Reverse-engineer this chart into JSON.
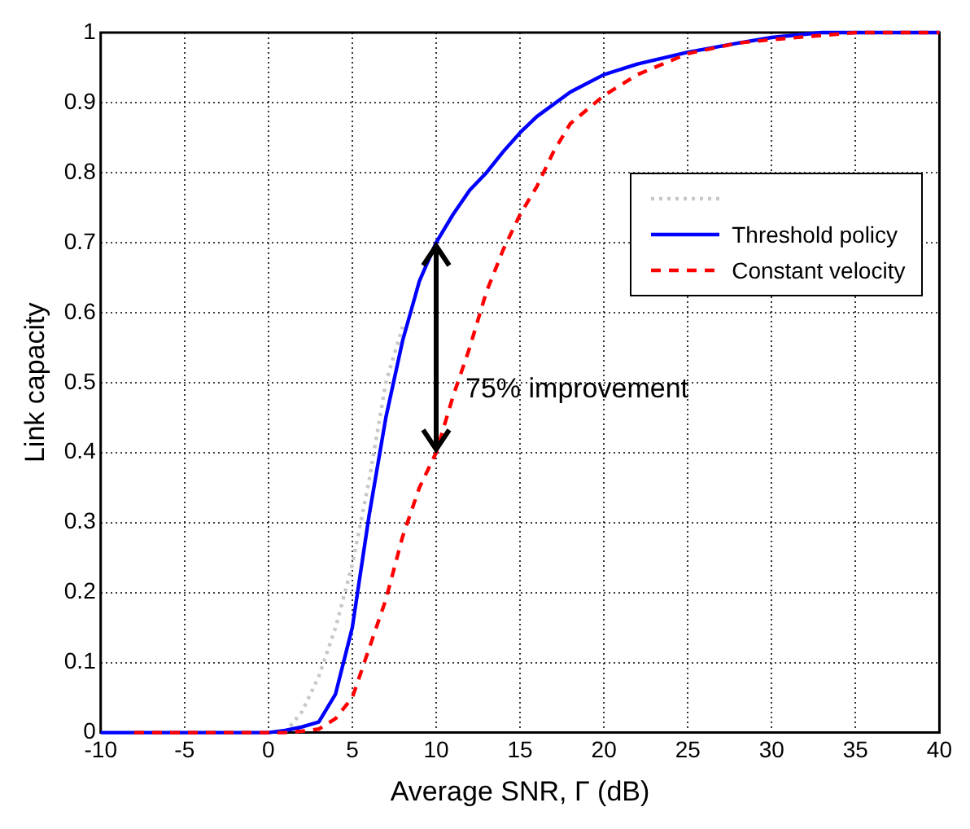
{
  "chart_data": {
    "type": "line",
    "xlabel": "Average SNR, Γ (dB)",
    "ylabel": "Link capacity",
    "xlim": [
      -10,
      40
    ],
    "xticks": [
      -10,
      -5,
      0,
      5,
      10,
      15,
      20,
      25,
      30,
      35,
      40
    ],
    "ylim": [
      0,
      1
    ],
    "yticks": [
      0,
      0.1,
      0.2,
      0.3,
      0.4,
      0.5,
      0.6,
      0.7,
      0.8,
      0.9,
      1
    ],
    "grid": true,
    "legend": "right",
    "marker": "none",
    "annotations": [
      "75% improvement"
    ],
    "series": [
      {
        "color": "#c8c8c8",
        "line_style": "dotted",
        "x": [
          1,
          2,
          3,
          4,
          5,
          6,
          7,
          8
        ],
        "values": [
          0,
          0.03,
          0.08,
          0.15,
          0.24,
          0.36,
          0.5,
          0.58
        ]
      },
      {
        "name": "Threshold policy",
        "color": "#0000ff",
        "line_style": "solid",
        "x": [
          -10,
          0,
          1,
          2,
          3,
          4,
          5,
          6,
          7,
          8,
          9,
          10,
          11,
          12,
          13,
          14,
          15,
          16,
          18,
          20,
          22,
          25,
          28,
          30,
          33,
          40
        ],
        "values": [
          0,
          0,
          0.003,
          0.008,
          0.015,
          0.055,
          0.15,
          0.31,
          0.45,
          0.56,
          0.645,
          0.7,
          0.74,
          0.775,
          0.8,
          0.83,
          0.857,
          0.88,
          0.915,
          0.94,
          0.955,
          0.972,
          0.985,
          0.993,
          1,
          1
        ]
      },
      {
        "name": "Constant velocity",
        "color": "#ff0000",
        "line_style": "dashed",
        "x": [
          -8,
          1,
          2,
          3,
          4,
          5,
          6,
          7,
          8,
          9,
          10,
          11,
          12,
          13,
          14,
          15,
          16,
          17,
          18,
          20,
          22,
          25,
          28,
          30,
          35,
          40
        ],
        "values": [
          0,
          0,
          0.002,
          0.005,
          0.02,
          0.05,
          0.12,
          0.19,
          0.28,
          0.35,
          0.4,
          0.48,
          0.55,
          0.63,
          0.69,
          0.74,
          0.78,
          0.83,
          0.87,
          0.91,
          0.94,
          0.97,
          0.985,
          0.99,
          1,
          1
        ]
      }
    ]
  }
}
